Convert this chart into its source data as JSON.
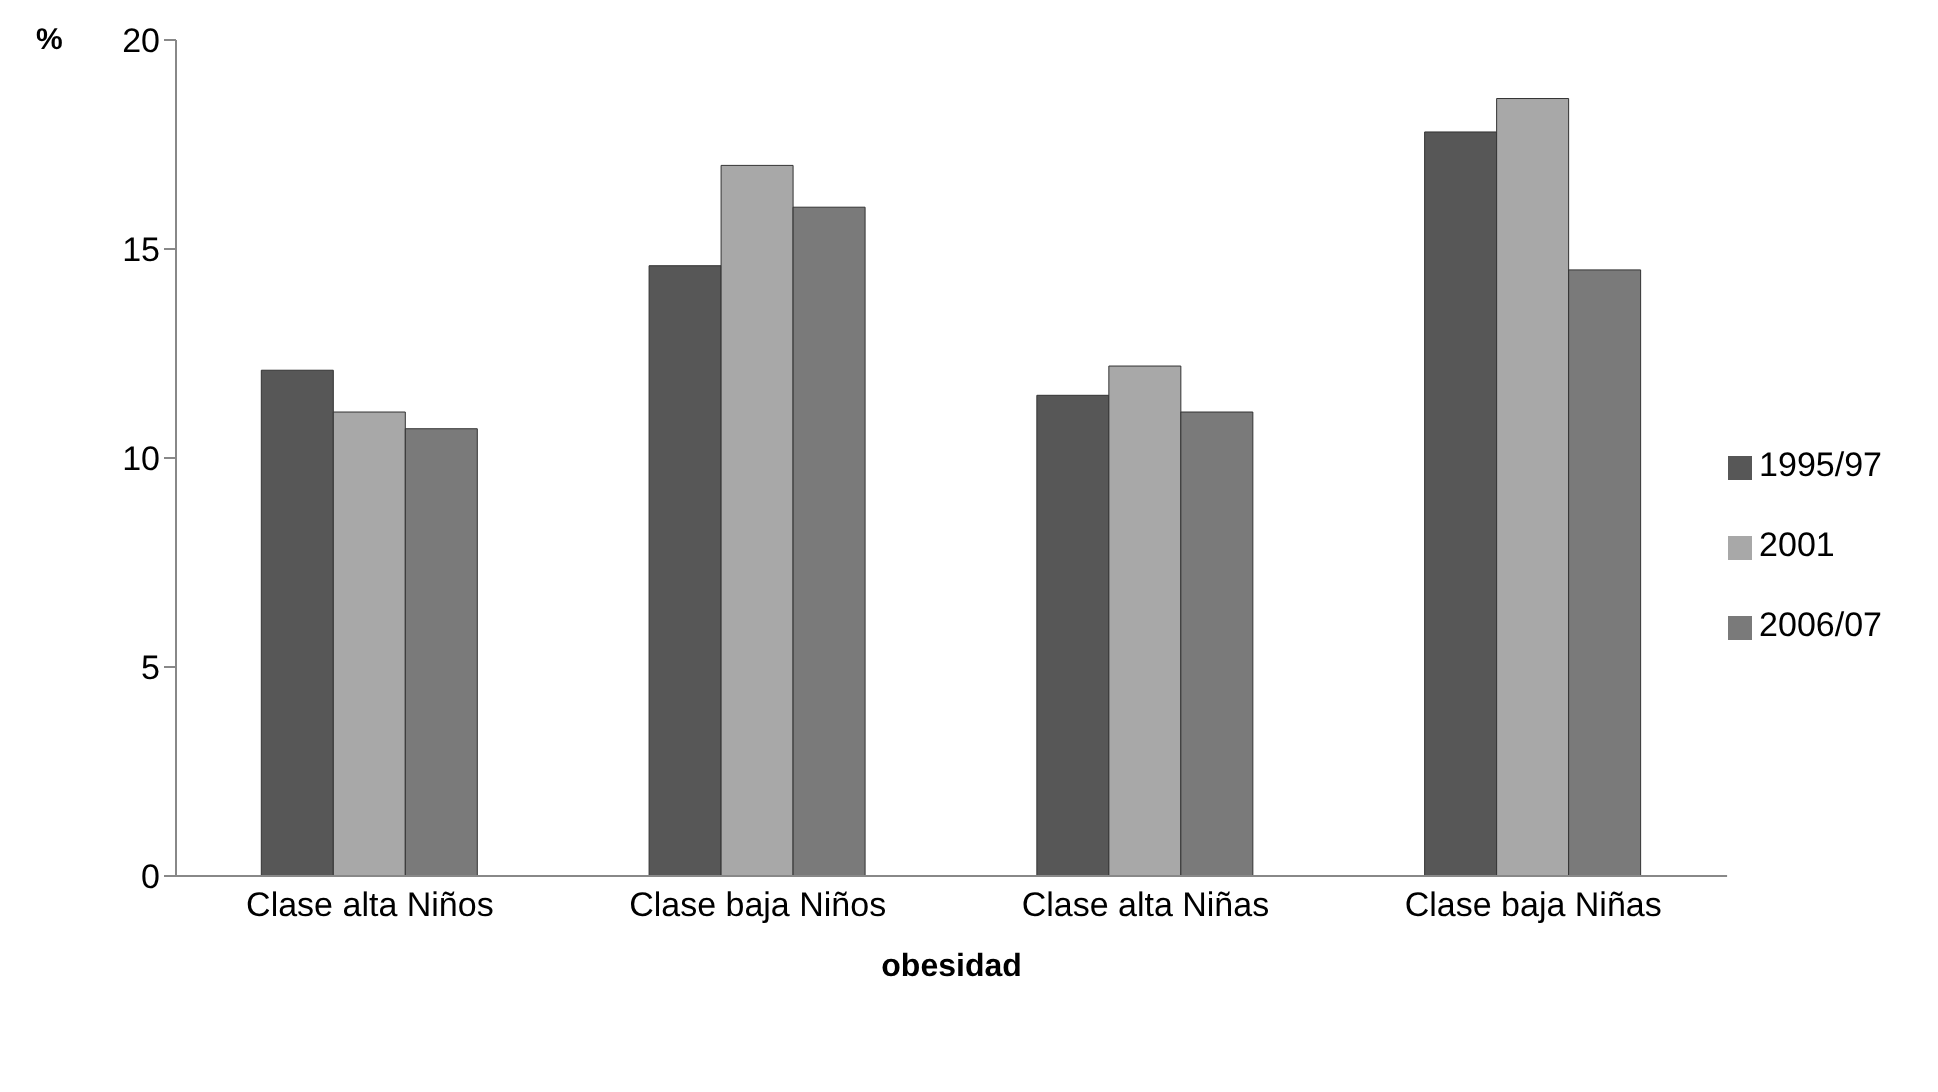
{
  "chart_data": {
    "type": "bar",
    "xlabel": "obesidad",
    "ylabel": "%",
    "categories": [
      "Clase alta Niños",
      "Clase baja Niños",
      "Clase alta Niñas",
      "Clase baja Niñas"
    ],
    "series": [
      {
        "name": "1995/97",
        "color": "#575757",
        "values": [
          12.1,
          14.6,
          11.5,
          17.8
        ]
      },
      {
        "name": "2001",
        "color": "#a8a8a8",
        "values": [
          11.1,
          17.0,
          12.2,
          18.6
        ]
      },
      {
        "name": "2006/07",
        "color": "#7a7a7a",
        "values": [
          10.7,
          16.0,
          11.1,
          14.5
        ]
      }
    ],
    "ylim": [
      0,
      20
    ],
    "yticks": [
      0,
      5,
      10,
      15,
      20
    ],
    "grid": false,
    "legend": "right"
  }
}
